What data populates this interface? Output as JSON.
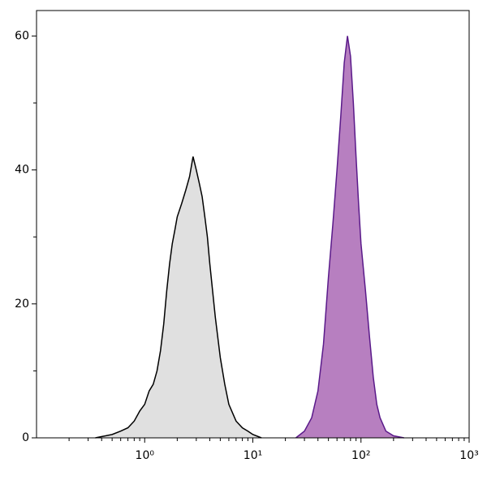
{
  "chart_data": {
    "type": "area",
    "xscale": "log",
    "xlim": [
      0.1,
      1000
    ],
    "ylim": [
      0,
      63.8
    ],
    "xticks": [
      {
        "value": 1,
        "label": "10⁰"
      },
      {
        "value": 10,
        "label": "10¹"
      },
      {
        "value": 100,
        "label": "10²"
      },
      {
        "value": 1000,
        "label": "10³"
      }
    ],
    "xminorticks": [
      0.2,
      0.3,
      0.4,
      0.5,
      0.6,
      0.7,
      0.8,
      0.9,
      2,
      3,
      4,
      5,
      6,
      7,
      8,
      9,
      20,
      30,
      40,
      50,
      60,
      70,
      80,
      90,
      200,
      300,
      400,
      500,
      600,
      700,
      800,
      900
    ],
    "yticks": [
      0,
      20,
      40,
      60
    ],
    "yminorticks": [
      10,
      30,
      50
    ],
    "series": [
      {
        "color": "#e0e0e0",
        "stroke": "#000000",
        "x": [
          0.35,
          0.5,
          0.6,
          0.7,
          0.8,
          0.9,
          1.0,
          1.1,
          1.2,
          1.3,
          1.4,
          1.5,
          1.6,
          1.7,
          1.8,
          1.9,
          2.0,
          2.2,
          2.4,
          2.6,
          2.8,
          3.0,
          3.2,
          3.4,
          3.6,
          3.8,
          4.0,
          4.5,
          5.0,
          5.5,
          6.0,
          7.0,
          8.0,
          9.0,
          10,
          12
        ],
        "values": [
          0,
          0.5,
          1,
          1.5,
          2.5,
          4,
          5,
          7,
          8,
          10,
          13,
          17,
          22,
          26,
          29,
          31,
          33,
          35,
          37,
          39,
          42,
          40,
          38,
          36,
          33,
          30,
          26,
          18,
          12,
          8,
          5,
          2.5,
          1.5,
          1,
          0.5,
          0
        ]
      },
      {
        "color": "#b77fc0",
        "stroke": "#5a1a8a",
        "x": [
          25,
          30,
          35,
          40,
          45,
          50,
          55,
          60,
          65,
          70,
          75,
          80,
          85,
          90,
          95,
          100,
          110,
          120,
          130,
          140,
          150,
          170,
          200,
          250
        ],
        "values": [
          0,
          1,
          3,
          7,
          14,
          24,
          32,
          40,
          48,
          56,
          60,
          57,
          50,
          42,
          35,
          29,
          22,
          15,
          9,
          5,
          3,
          1,
          0.3,
          0
        ]
      }
    ]
  }
}
